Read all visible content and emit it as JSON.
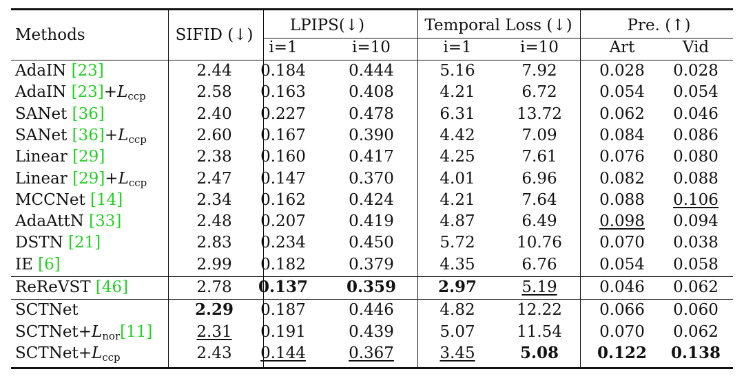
{
  "header": {
    "methods": "Methods",
    "sifid": "SIFID (↓)",
    "lpips": "LPIPS(↓)",
    "temporal": "Temporal Loss (↓)",
    "pre": "Pre. (↑)",
    "sub": [
      "i=1",
      "i=10",
      "i=1",
      "i=10",
      "Art",
      "Vid"
    ]
  },
  "rows": [
    {
      "name": "AdaIN",
      "cite": "23",
      "suffix": "",
      "vals": [
        "2.44",
        "0.184",
        "0.444",
        "5.16",
        "7.92",
        "0.028",
        "0.028"
      ]
    },
    {
      "name": "AdaIN",
      "cite": "23",
      "suffix": "+L",
      "sub": "ccp",
      "vals": [
        "2.58",
        "0.163",
        "0.408",
        "4.21",
        "6.72",
        "0.054",
        "0.054"
      ]
    },
    {
      "name": "SANet",
      "cite": "36",
      "suffix": "",
      "vals": [
        "2.40",
        "0.227",
        "0.478",
        "6.31",
        "13.72",
        "0.062",
        "0.046"
      ]
    },
    {
      "name": "SANet",
      "cite": "36",
      "suffix": "+L",
      "sub": "ccp",
      "vals": [
        "2.60",
        "0.167",
        "0.390",
        "4.42",
        "7.09",
        "0.084",
        "0.086"
      ]
    },
    {
      "name": "Linear",
      "cite": "29",
      "suffix": "",
      "vals": [
        "2.38",
        "0.160",
        "0.417",
        "4.25",
        "7.61",
        "0.076",
        "0.080"
      ]
    },
    {
      "name": "Linear",
      "cite": "29",
      "suffix": "+L",
      "sub": "ccp",
      "vals": [
        "2.47",
        "0.147",
        "0.370",
        "4.01",
        "6.96",
        "0.082",
        "0.088"
      ]
    },
    {
      "name": "MCCNet",
      "cite": "14",
      "suffix": "",
      "vals": [
        "2.34",
        "0.162",
        "0.424",
        "4.21",
        "7.64",
        "0.088",
        "0.106"
      ]
    },
    {
      "name": "AdaAttN",
      "cite": "33",
      "suffix": "",
      "vals": [
        "2.48",
        "0.207",
        "0.419",
        "4.87",
        "6.49",
        "0.098",
        "0.094"
      ]
    },
    {
      "name": "DSTN",
      "cite": "21",
      "suffix": "",
      "vals": [
        "2.83",
        "0.234",
        "0.450",
        "5.72",
        "10.76",
        "0.070",
        "0.038"
      ]
    },
    {
      "name": "IE",
      "cite": "6",
      "suffix": "",
      "vals": [
        "2.99",
        "0.182",
        "0.379",
        "4.35",
        "6.76",
        "0.054",
        "0.058"
      ]
    },
    {
      "name": "ReReVST",
      "cite": "46",
      "suffix": "",
      "vals": [
        "2.78",
        "0.137",
        "0.359",
        "2.97",
        "5.19",
        "0.046",
        "0.062"
      ]
    },
    {
      "name": "SCTNet",
      "cite": "",
      "suffix": "",
      "vals": [
        "2.29",
        "0.187",
        "0.446",
        "4.82",
        "12.22",
        "0.066",
        "0.060"
      ]
    },
    {
      "name": "SCTNet",
      "cite": "11",
      "suffix": "+L",
      "sub": "nor",
      "citeAfter": true,
      "vals": [
        "2.31",
        "0.191",
        "0.439",
        "5.07",
        "11.54",
        "0.070",
        "0.062"
      ]
    },
    {
      "name": "SCTNet",
      "cite": "",
      "suffix": "+L",
      "sub": "ccp",
      "vals": [
        "2.43",
        "0.144",
        "0.367",
        "3.45",
        "5.08",
        "0.122",
        "0.138"
      ]
    }
  ],
  "styles": {
    "bold": [
      [
        10,
        1
      ],
      [
        10,
        2
      ],
      [
        10,
        3
      ],
      [
        11,
        0
      ],
      [
        13,
        4
      ],
      [
        13,
        5
      ],
      [
        13,
        6
      ]
    ],
    "underline": [
      [
        6,
        6
      ],
      [
        7,
        5
      ],
      [
        10,
        4
      ],
      [
        12,
        0
      ],
      [
        13,
        1
      ],
      [
        13,
        2
      ],
      [
        13,
        3
      ]
    ]
  }
}
